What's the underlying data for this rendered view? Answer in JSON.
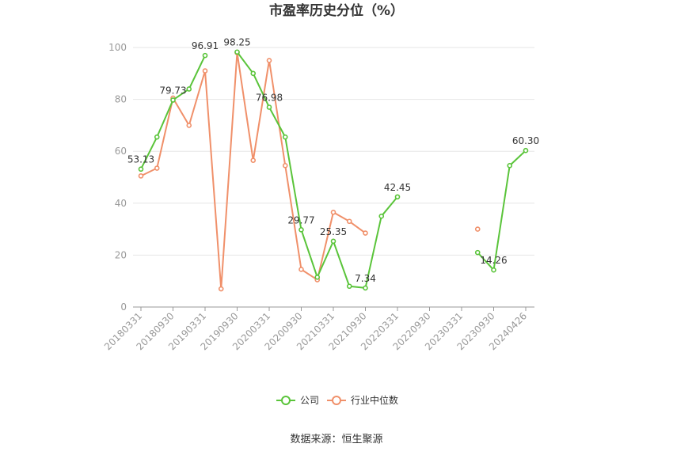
{
  "chart_data": {
    "type": "line",
    "title": "市盈率历史分位（%）",
    "xlabel": "",
    "ylabel": "",
    "ylim": [
      0,
      100
    ],
    "yticks": [
      0,
      20,
      40,
      60,
      80,
      100
    ],
    "x": [
      "20180331",
      "20180630",
      "20180930",
      "20181231",
      "20190331",
      "20190630",
      "20190930",
      "20191231",
      "20200331",
      "20200630",
      "20200930",
      "20201231",
      "20210331",
      "20210630",
      "20210930",
      "20211231",
      "20220331",
      "20220630",
      "20220930",
      "20221231",
      "20230331",
      "20230630",
      "20230930",
      "20231231",
      "20240426"
    ],
    "x_tick_labels": [
      "20180331",
      "20180930",
      "20190331",
      "20190930",
      "20200331",
      "20200930",
      "20210331",
      "20210930",
      "20220331",
      "20220930",
      "20230331",
      "20230930",
      "20240426"
    ],
    "series": [
      {
        "name": "公司",
        "color": "#5ac43a",
        "values": [
          53.13,
          65.5,
          79.73,
          84.0,
          96.91,
          null,
          98.25,
          90.0,
          76.98,
          65.5,
          29.77,
          11.5,
          25.35,
          8.0,
          7.34,
          35.0,
          42.45,
          null,
          null,
          null,
          null,
          21.0,
          14.26,
          54.5,
          60.3
        ],
        "labels": [
          53.13,
          null,
          79.73,
          null,
          96.91,
          null,
          98.25,
          null,
          76.98,
          null,
          29.77,
          null,
          25.35,
          null,
          7.34,
          null,
          42.45,
          null,
          null,
          null,
          null,
          null,
          14.26,
          null,
          60.3
        ]
      },
      {
        "name": "行业中位数",
        "color": "#f0906a",
        "values": [
          50.5,
          53.5,
          80.5,
          70.0,
          91.0,
          7.0,
          98.0,
          56.5,
          95.0,
          54.5,
          14.5,
          10.5,
          36.5,
          33.0,
          28.5,
          null,
          null,
          null,
          null,
          null,
          null,
          30.0,
          null,
          null,
          null
        ],
        "labels": []
      }
    ],
    "legend_position": "bottom"
  },
  "source": "数据来源：恒生聚源"
}
